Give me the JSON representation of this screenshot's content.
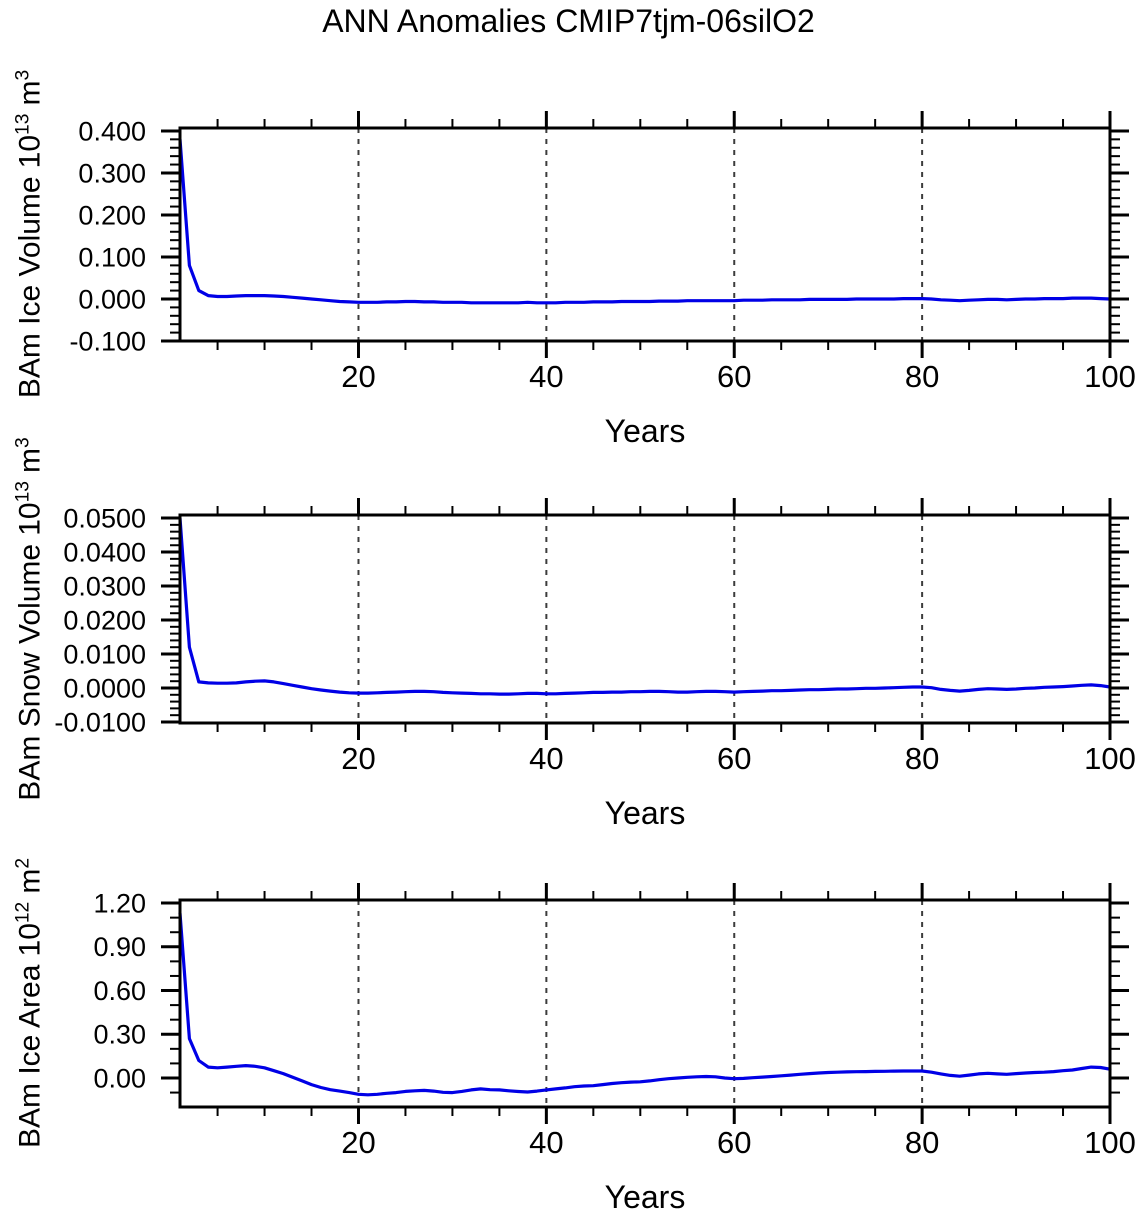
{
  "figure": {
    "title": "ANN Anomalies CMIP7tjm-06silO2",
    "background": "#ffffff",
    "series_color": "#0000e6",
    "axis_color": "#000000",
    "grid_color": "#3c3c3c"
  },
  "chart_data": [
    {
      "type": "line",
      "panel": "ice-volume",
      "ylabel": {
        "text": "BAm Ice Volume",
        "scale_base": "10",
        "scale_exp": "13",
        "unit_base": "m",
        "unit_exp": "3"
      },
      "xlabel": "Years",
      "xlim": [
        1,
        100
      ],
      "ylim": [
        -0.1,
        0.407
      ],
      "xtick_values": [
        20,
        40,
        60,
        80,
        100
      ],
      "xtick_labels": [
        "20",
        "40",
        "60",
        "80",
        "100"
      ],
      "xtick_minor_step": 5,
      "ytick_values": [
        0.4,
        0.3,
        0.2,
        0.1,
        0.0,
        -0.1
      ],
      "ytick_labels": [
        "0.400",
        "0.300",
        "0.200",
        "0.100",
        "0.000",
        "-0.100"
      ],
      "ytick_minor_step": 0.02,
      "grid_x": [
        20,
        40,
        60,
        80
      ],
      "x_start": 1,
      "x_step": 1,
      "values": [
        0.38,
        0.08,
        0.02,
        0.008,
        0.006,
        0.006,
        0.007,
        0.008,
        0.008,
        0.008,
        0.007,
        0.006,
        0.004,
        0.002,
        0.0,
        -0.002,
        -0.004,
        -0.006,
        -0.007,
        -0.008,
        -0.008,
        -0.008,
        -0.007,
        -0.007,
        -0.006,
        -0.006,
        -0.007,
        -0.007,
        -0.008,
        -0.008,
        -0.008,
        -0.009,
        -0.009,
        -0.009,
        -0.009,
        -0.009,
        -0.009,
        -0.008,
        -0.009,
        -0.009,
        -0.009,
        -0.008,
        -0.008,
        -0.008,
        -0.007,
        -0.007,
        -0.007,
        -0.006,
        -0.006,
        -0.006,
        -0.006,
        -0.005,
        -0.005,
        -0.005,
        -0.004,
        -0.004,
        -0.004,
        -0.004,
        -0.004,
        -0.004,
        -0.003,
        -0.003,
        -0.003,
        -0.002,
        -0.002,
        -0.002,
        -0.002,
        -0.001,
        -0.001,
        -0.001,
        -0.001,
        -0.001,
        0.0,
        0.0,
        0.0,
        0.0,
        0.0,
        0.001,
        0.001,
        0.001,
        0.0,
        -0.002,
        -0.003,
        -0.004,
        -0.003,
        -0.002,
        -0.001,
        -0.001,
        -0.002,
        -0.001,
        0.0,
        0.0,
        0.001,
        0.001,
        0.001,
        0.002,
        0.002,
        0.002,
        0.001,
        0.0
      ]
    },
    {
      "type": "line",
      "panel": "snow-volume",
      "ylabel": {
        "text": "BAm Snow Volume",
        "scale_base": "10",
        "scale_exp": "13",
        "unit_base": "m",
        "unit_exp": "3"
      },
      "xlabel": "Years",
      "xlim": [
        1,
        100
      ],
      "ylim": [
        -0.0103,
        0.0509
      ],
      "xtick_values": [
        20,
        40,
        60,
        80,
        100
      ],
      "xtick_labels": [
        "20",
        "40",
        "60",
        "80",
        "100"
      ],
      "xtick_minor_step": 5,
      "ytick_values": [
        0.05,
        0.04,
        0.03,
        0.02,
        0.01,
        0.0,
        -0.01
      ],
      "ytick_labels": [
        "0.0500",
        "0.0400",
        "0.0300",
        "0.0200",
        "0.0100",
        "0.0000",
        "-0.0100"
      ],
      "ytick_minor_step": 0.002,
      "grid_x": [
        20,
        40,
        60,
        80
      ],
      "x_start": 1,
      "x_step": 1,
      "values": [
        0.05,
        0.012,
        0.0018,
        0.0015,
        0.0014,
        0.0014,
        0.0015,
        0.0018,
        0.002,
        0.0021,
        0.0018,
        0.0013,
        0.0008,
        0.0003,
        -0.0002,
        -0.0006,
        -0.0009,
        -0.0012,
        -0.0014,
        -0.0015,
        -0.0015,
        -0.0014,
        -0.0013,
        -0.0012,
        -0.0011,
        -0.001,
        -0.001,
        -0.0011,
        -0.0013,
        -0.0014,
        -0.0015,
        -0.0016,
        -0.0017,
        -0.0017,
        -0.0018,
        -0.0018,
        -0.0017,
        -0.0016,
        -0.0016,
        -0.0017,
        -0.0017,
        -0.0016,
        -0.0015,
        -0.0014,
        -0.0013,
        -0.0013,
        -0.0012,
        -0.0012,
        -0.0011,
        -0.0011,
        -0.001,
        -0.001,
        -0.0011,
        -0.0012,
        -0.0012,
        -0.0011,
        -0.001,
        -0.001,
        -0.0011,
        -0.0012,
        -0.0011,
        -0.001,
        -0.0009,
        -0.0008,
        -0.0008,
        -0.0007,
        -0.0006,
        -0.0005,
        -0.0005,
        -0.0004,
        -0.0003,
        -0.0003,
        -0.0002,
        -0.0001,
        -0.0001,
        0.0,
        0.0001,
        0.0002,
        0.0003,
        0.0003,
        0.0001,
        -0.0004,
        -0.0007,
        -0.0009,
        -0.0007,
        -0.0004,
        -0.0002,
        -0.0003,
        -0.0004,
        -0.0003,
        -0.0001,
        0.0,
        0.0002,
        0.0003,
        0.0004,
        0.0006,
        0.0008,
        0.0009,
        0.0007,
        0.0003
      ]
    },
    {
      "type": "line",
      "panel": "ice-area",
      "ylabel": {
        "text": "BAm Ice Area",
        "scale_base": "10",
        "scale_exp": "12",
        "unit_base": "m",
        "unit_exp": "2"
      },
      "xlabel": "Years",
      "xlim": [
        1,
        100
      ],
      "ylim": [
        -0.199,
        1.221
      ],
      "xtick_values": [
        20,
        40,
        60,
        80,
        100
      ],
      "xtick_labels": [
        "20",
        "40",
        "60",
        "80",
        "100"
      ],
      "xtick_minor_step": 5,
      "ytick_values": [
        1.2,
        0.9,
        0.6,
        0.3,
        0.0
      ],
      "ytick_labels": [
        "1.20",
        "0.90",
        "0.60",
        "0.30",
        "0.00"
      ],
      "ytick_minor_step": 0.1,
      "grid_x": [
        20,
        40,
        60,
        80
      ],
      "x_start": 1,
      "x_step": 1,
      "values": [
        1.13,
        0.27,
        0.12,
        0.075,
        0.07,
        0.075,
        0.08,
        0.085,
        0.08,
        0.07,
        0.05,
        0.03,
        0.005,
        -0.02,
        -0.045,
        -0.065,
        -0.08,
        -0.09,
        -0.1,
        -0.112,
        -0.115,
        -0.112,
        -0.105,
        -0.1,
        -0.092,
        -0.088,
        -0.085,
        -0.09,
        -0.098,
        -0.1,
        -0.092,
        -0.082,
        -0.075,
        -0.08,
        -0.082,
        -0.088,
        -0.093,
        -0.096,
        -0.09,
        -0.082,
        -0.075,
        -0.068,
        -0.06,
        -0.055,
        -0.053,
        -0.045,
        -0.038,
        -0.032,
        -0.028,
        -0.026,
        -0.02,
        -0.012,
        -0.005,
        0.0,
        0.005,
        0.008,
        0.01,
        0.008,
        0.0,
        -0.005,
        -0.003,
        0.002,
        0.006,
        0.01,
        0.015,
        0.02,
        0.025,
        0.03,
        0.034,
        0.038,
        0.04,
        0.042,
        0.043,
        0.044,
        0.045,
        0.046,
        0.047,
        0.048,
        0.048,
        0.048,
        0.04,
        0.028,
        0.018,
        0.012,
        0.02,
        0.028,
        0.032,
        0.028,
        0.025,
        0.03,
        0.034,
        0.038,
        0.04,
        0.044,
        0.05,
        0.055,
        0.065,
        0.075,
        0.072,
        0.06
      ]
    }
  ]
}
